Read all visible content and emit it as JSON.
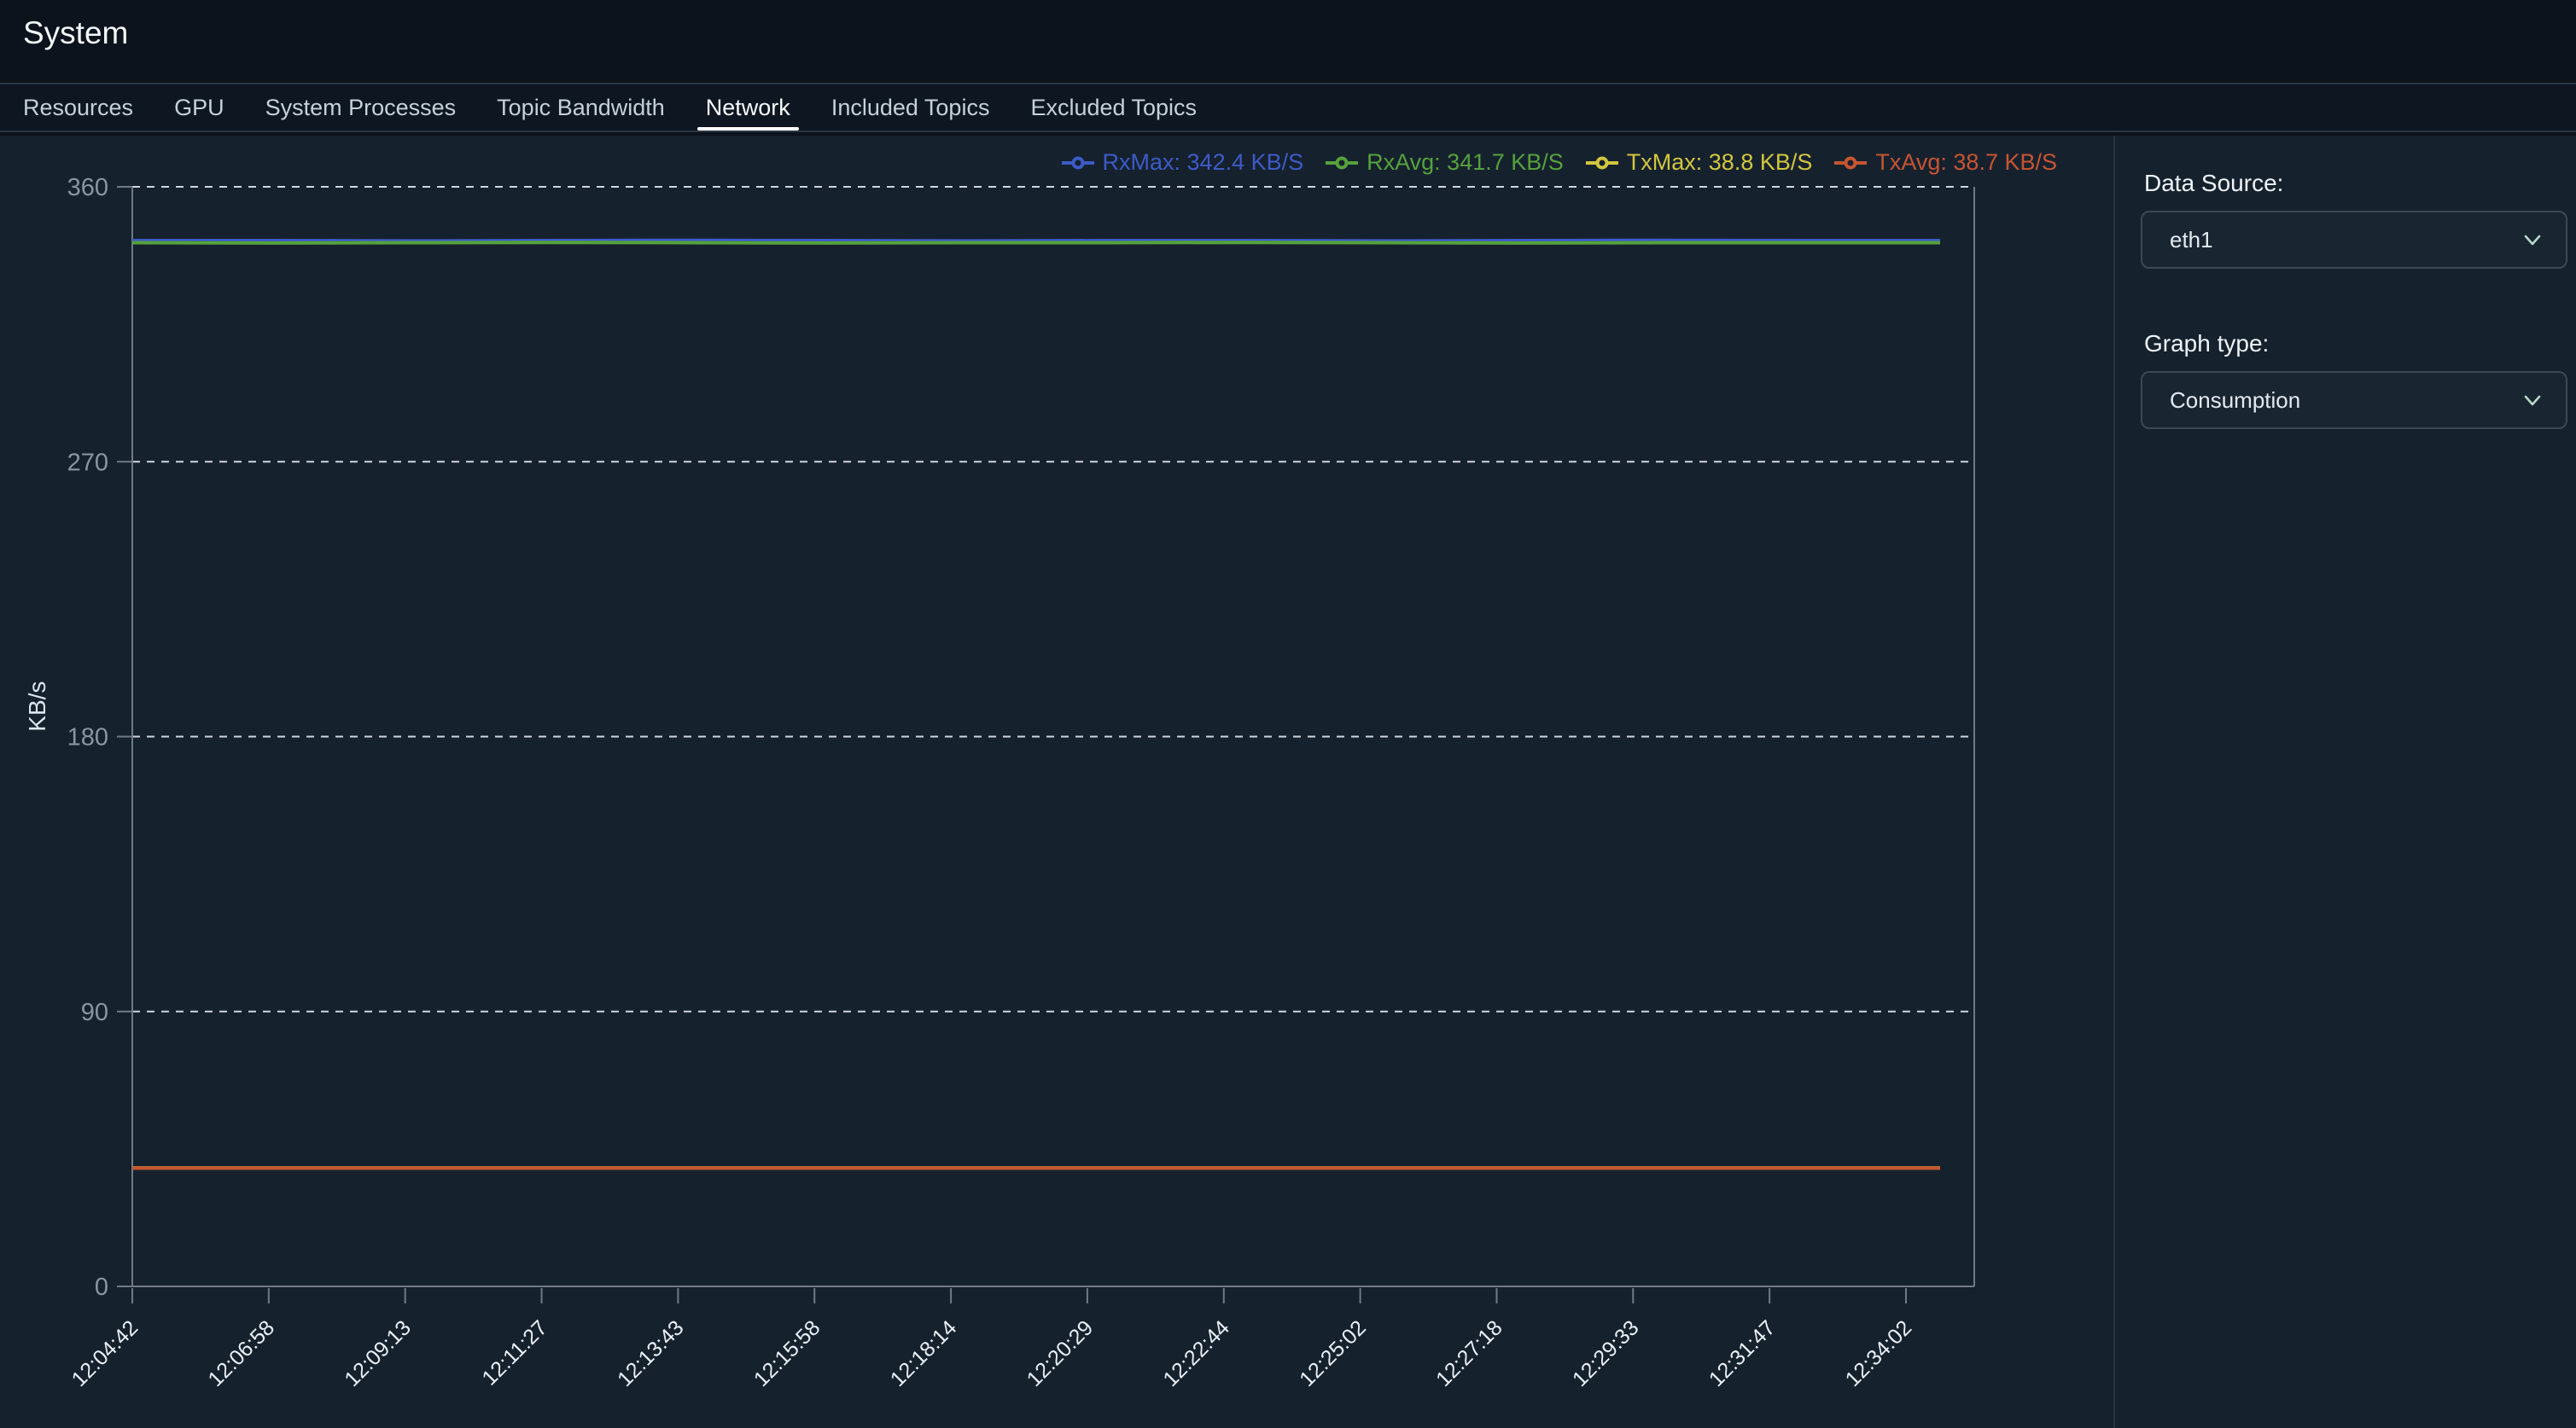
{
  "header": {
    "title": "System"
  },
  "tabs": {
    "items": [
      {
        "label": "Resources",
        "active": false
      },
      {
        "label": "GPU",
        "active": false
      },
      {
        "label": "System Processes",
        "active": false
      },
      {
        "label": "Topic Bandwidth",
        "active": false
      },
      {
        "label": "Network",
        "active": true
      },
      {
        "label": "Included Topics",
        "active": false
      },
      {
        "label": "Excluded Topics",
        "active": false
      }
    ]
  },
  "sidebar": {
    "data_source": {
      "label": "Data Source:",
      "value": "eth1"
    },
    "graph_type": {
      "label": "Graph type:",
      "value": "Consumption"
    }
  },
  "colors": {
    "background": "#16212e",
    "header_bg": "#0c131c",
    "tabbar_bg": "#0e1621",
    "border": "#2a3542",
    "axis": "#707a86",
    "grid": "#dfe6ec",
    "y_tick_label": "#8b95a2",
    "x_tick_label": "#eaf0f5"
  },
  "chart_data": {
    "type": "line",
    "title": "",
    "xlabel": "",
    "ylabel": "KB/s",
    "ylim": [
      0,
      360
    ],
    "yticks": [
      0,
      90,
      180,
      270,
      360
    ],
    "grid": "horizontal-dashed-white",
    "legend_position": "top-right",
    "x": [
      "12:04:42",
      "12:06:58",
      "12:09:13",
      "12:11:27",
      "12:13:43",
      "12:15:58",
      "12:18:14",
      "12:20:29",
      "12:22:44",
      "12:25:02",
      "12:27:18",
      "12:29:33",
      "12:31:47",
      "12:34:02"
    ],
    "series": [
      {
        "name": "RxMax",
        "display": "RxMax: 342.4 KB/S",
        "stat_value": 342.4,
        "unit": "KB/S",
        "color": "#3c5bc8",
        "values": [
          342.4,
          342.4,
          342.3,
          342.4,
          342.5,
          342.4,
          342.3,
          342.4,
          342.4,
          342.3,
          342.4,
          342.5,
          342.4,
          342.4
        ]
      },
      {
        "name": "RxAvg",
        "display": "RxAvg: 341.7 KB/S",
        "stat_value": 341.7,
        "unit": "KB/S",
        "color": "#55a23c",
        "values": [
          341.7,
          341.6,
          341.7,
          341.8,
          341.7,
          341.6,
          341.7,
          341.7,
          341.8,
          341.7,
          341.6,
          341.7,
          341.7,
          341.7
        ]
      },
      {
        "name": "TxMax",
        "display": "TxMax: 38.8 KB/S",
        "stat_value": 38.8,
        "unit": "KB/S",
        "color": "#d2c63e",
        "values": [
          38.8,
          38.8,
          38.8,
          38.8,
          38.8,
          38.8,
          38.8,
          38.8,
          38.8,
          38.8,
          38.8,
          38.8,
          38.8,
          38.8
        ]
      },
      {
        "name": "TxAvg",
        "display": "TxAvg: 38.7 KB/S",
        "stat_value": 38.7,
        "unit": "KB/S",
        "color": "#c65532",
        "values": [
          38.7,
          38.7,
          38.7,
          38.7,
          38.7,
          38.7,
          38.7,
          38.7,
          38.7,
          38.7,
          38.7,
          38.7,
          38.7,
          38.7
        ]
      }
    ]
  }
}
